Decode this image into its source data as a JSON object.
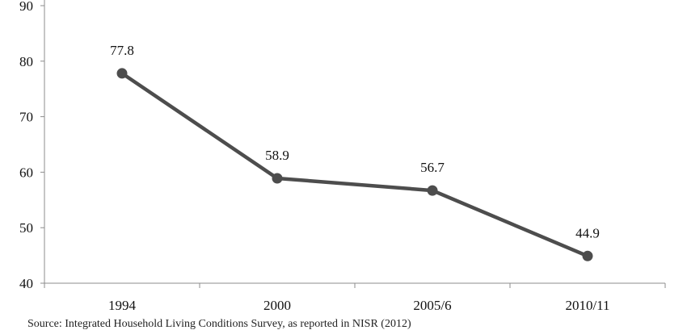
{
  "chart_data": {
    "type": "line",
    "categories": [
      "1994",
      "2000",
      "2005/6",
      "2010/11"
    ],
    "values": [
      77.8,
      58.9,
      56.7,
      44.9
    ],
    "data_labels": [
      "77.8",
      "58.9",
      "56.7",
      "44.9"
    ],
    "ylim": [
      40,
      90
    ],
    "yticks": [
      40,
      50,
      60,
      70,
      80,
      90
    ],
    "ytick_labels": [
      "40",
      "50",
      "60",
      "70",
      "80",
      "90"
    ],
    "grid": false,
    "legend": "none",
    "line_color": "#4d4d4d",
    "marker": "circle"
  },
  "source_note": "Source: Integrated Household Living Conditions Survey, as reported in NISR (2012)"
}
